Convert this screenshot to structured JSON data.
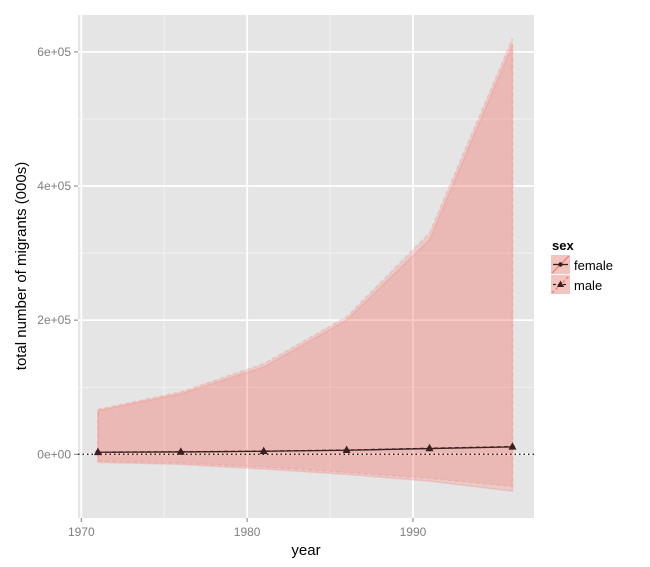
{
  "chart_data": {
    "type": "area",
    "xlabel": "year",
    "ylabel": "total number of migrants (000s)",
    "xlim": [
      1969.8,
      1997.3
    ],
    "ylim": [
      -95000,
      655000
    ],
    "x_ticks": [
      1970,
      1980,
      1990
    ],
    "x_tick_labels": [
      "1970",
      "1980",
      "1990"
    ],
    "y_ticks": [
      0,
      200000,
      400000,
      600000
    ],
    "y_tick_labels": [
      "0e+00",
      "2e+05",
      "4e+05",
      "6e+05"
    ],
    "reference_line_y": 0,
    "grid": true,
    "legend_position": "right",
    "legend": {
      "title": "sex",
      "entries": [
        "female",
        "male"
      ]
    },
    "series": [
      {
        "name": "female",
        "x": [
          1971,
          1976,
          1981,
          1986,
          1991,
          1996
        ],
        "values": [
          3000,
          3500,
          4500,
          6000,
          8500,
          11000
        ],
        "lower": [
          -12000,
          -15000,
          -22000,
          -30000,
          -40000,
          -55000
        ],
        "upper": [
          65000,
          90000,
          130000,
          200000,
          320000,
          610000
        ],
        "line_style": "solid",
        "marker": "circle"
      },
      {
        "name": "male",
        "x": [
          1971,
          1976,
          1981,
          1986,
          1991,
          1996
        ],
        "values": [
          3200,
          3700,
          4700,
          6300,
          9000,
          11500
        ],
        "lower": [
          -10000,
          -13000,
          -19000,
          -27000,
          -36000,
          -48000
        ],
        "upper": [
          67000,
          93000,
          135000,
          205000,
          330000,
          620000
        ],
        "line_style": "dashed",
        "marker": "triangle"
      }
    ],
    "colors": {
      "panel_background": "#e5e5e5",
      "grid_major": "#ffffff",
      "grid_minor": "#f2f2f2",
      "ribbon_fill": "#f8766d",
      "line": "#3b1f1f",
      "legend_key_bg": "#f2c4c0"
    }
  }
}
